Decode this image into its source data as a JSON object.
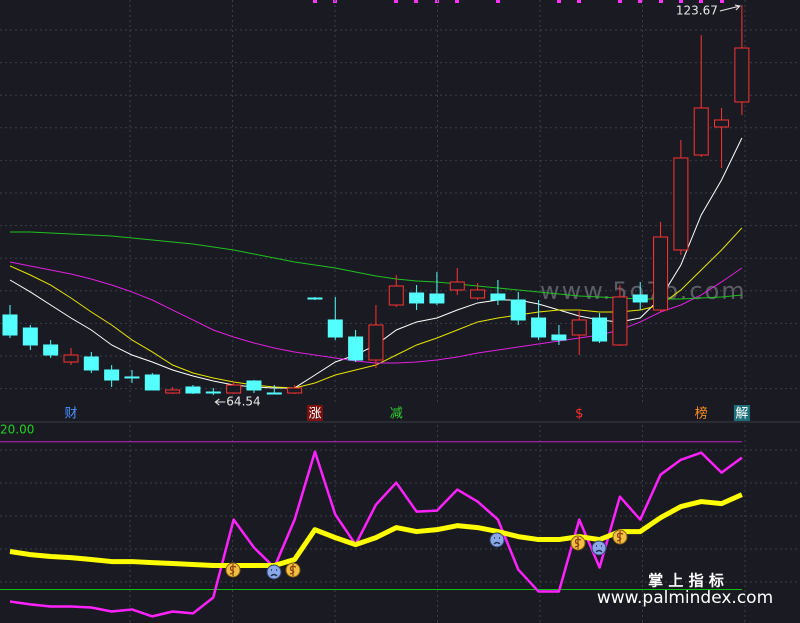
{
  "chart_data": [
    {
      "type": "candlestick",
      "up_color": "#ff3232",
      "down_color": "#54ffff",
      "ylim": [
        63.03,
        124.43
      ],
      "open": [
        76.68,
        74.7,
        72.13,
        69.55,
        70.31,
        68.34,
        67.28,
        67.58,
        64.85,
        65.76,
        65.0,
        64.85,
        66.67,
        64.85,
        64.85,
        79.25,
        75.92,
        73.34,
        69.85,
        78.19,
        80.01,
        79.86,
        80.47,
        79.25,
        79.86,
        78.95,
        76.22,
        73.64,
        73.64,
        76.22,
        72.13,
        79.71,
        77.43,
        86.53,
        100.93,
        105.18,
        108.97
      ],
      "high": [
        78.19,
        75.16,
        72.89,
        71.67,
        71.07,
        69.09,
        68.34,
        67.88,
        65.76,
        66.06,
        65.61,
        66.52,
        66.82,
        66.06,
        66.06,
        79.41,
        79.41,
        74.4,
        78.19,
        82.74,
        81.22,
        83.19,
        83.8,
        81.53,
        81.98,
        80.17,
        78.95,
        75.16,
        77.43,
        76.98,
        81.22,
        81.68,
        90.78,
        103.21,
        119.12,
        108.06,
        123.67
      ],
      "low": [
        73.19,
        71.37,
        70.16,
        69.09,
        67.88,
        65.76,
        66.37,
        65.31,
        64.7,
        64.7,
        64.54,
        64.7,
        64.85,
        64.7,
        64.7,
        78.95,
        72.89,
        69.55,
        68.64,
        77.89,
        77.43,
        78.19,
        79.71,
        78.95,
        78.19,
        75.16,
        72.89,
        72.13,
        70.61,
        72.43,
        71.98,
        77.43,
        77.13,
        85.77,
        100.63,
        98.96,
        107.0
      ],
      "close": [
        73.64,
        72.13,
        70.61,
        70.61,
        68.34,
        66.82,
        67.28,
        65.31,
        65.31,
        64.85,
        64.85,
        66.06,
        65.31,
        64.85,
        65.61,
        79.25,
        73.34,
        69.85,
        75.16,
        81.07,
        78.5,
        78.5,
        81.68,
        80.47,
        78.95,
        75.92,
        73.34,
        72.89,
        75.92,
        72.73,
        79.41,
        78.65,
        88.5,
        100.48,
        108.06,
        106.24,
        117.15
      ],
      "series": [
        {
          "color": "#ffffff",
          "values": [
            81.98,
            80.17,
            78.19,
            76.22,
            74.4,
            72.13,
            70.61,
            69.55,
            68.34,
            67.43,
            66.67,
            66.06,
            65.76,
            65.61,
            65.61,
            67.58,
            69.55,
            70.61,
            72.13,
            74.4,
            75.62,
            76.22,
            77.43,
            78.5,
            78.95,
            78.95,
            78.34,
            77.43,
            76.52,
            75.92,
            75.62,
            76.22,
            79.25,
            84.26,
            91.84,
            97.14,
            103.51
          ]
        },
        {
          "color": "#e6e600",
          "values": [
            84.11,
            82.74,
            81.22,
            79.25,
            77.13,
            75.16,
            72.89,
            71.07,
            69.09,
            67.88,
            67.13,
            66.52,
            66.06,
            65.76,
            65.61,
            66.37,
            67.58,
            68.34,
            69.09,
            70.61,
            72.13,
            73.19,
            74.4,
            75.62,
            76.22,
            76.68,
            77.13,
            77.43,
            77.43,
            77.13,
            77.13,
            77.43,
            78.19,
            80.47,
            83.5,
            86.53,
            89.87
          ]
        },
        {
          "color": "#e020e0",
          "values": [
            84.71,
            84.11,
            83.5,
            82.89,
            82.13,
            81.22,
            80.17,
            78.95,
            77.43,
            75.92,
            74.4,
            73.34,
            72.43,
            71.67,
            71.07,
            70.61,
            70.16,
            69.7,
            69.4,
            69.4,
            69.55,
            69.85,
            70.31,
            70.92,
            71.37,
            71.83,
            72.28,
            72.73,
            73.19,
            73.64,
            74.4,
            75.62,
            77.13,
            78.19,
            79.71,
            81.68,
            83.8
          ]
        },
        {
          "color": "#20c020",
          "values": [
            89.26,
            89.26,
            89.11,
            88.96,
            88.8,
            88.65,
            88.35,
            88.05,
            87.74,
            87.44,
            86.99,
            86.53,
            85.92,
            85.32,
            84.71,
            84.26,
            83.8,
            83.19,
            82.59,
            82.13,
            81.83,
            81.68,
            81.37,
            81.07,
            80.77,
            80.47,
            80.17,
            79.86,
            79.56,
            79.41,
            79.25,
            79.1,
            79.1,
            79.1,
            79.25,
            79.41,
            79.71
          ]
        }
      ],
      "signals": [
        {
          "index": 3,
          "label": "财",
          "color": "#4a90ff"
        },
        {
          "index": 15,
          "label": "涨",
          "color": "#ffffff",
          "bg": "#7a1010"
        },
        {
          "index": 19,
          "label": "减",
          "color": "#30d030"
        },
        {
          "index": 28,
          "label": "$",
          "color": "#ff3030"
        },
        {
          "index": 34,
          "label": "榜",
          "color": "#ff9020"
        },
        {
          "index": 36,
          "label": "解",
          "color": "#ffffff",
          "bg": "#1c6e7a"
        }
      ],
      "watermark": "www.5o7o.com"
    },
    {
      "type": "line",
      "title": "20.00",
      "ylim": [
        -22,
        112
      ],
      "hlines": [
        {
          "value": 100,
          "color": "#c020c0"
        },
        {
          "value": 0,
          "color": "#10c010"
        }
      ],
      "series": [
        {
          "color": "#ff22ff",
          "width": 2.5,
          "values": [
            -8.1,
            -10.1,
            -11.5,
            -11.5,
            -12.2,
            -14.9,
            -13.5,
            -18.2,
            -14.9,
            -16.2,
            -5.4,
            47.3,
            28.4,
            14.9,
            47.3,
            93.2,
            50.7,
            30.4,
            57.4,
            72.3,
            52.7,
            53.4,
            67.6,
            59.5,
            47.3,
            13.5,
            -1.4,
            -1.4,
            47.3,
            14.9,
            62.8,
            47.3,
            77.7,
            87.8,
            92.6,
            79.1,
            89.2
          ]
        },
        {
          "color": "#ffff00",
          "width": 5,
          "values": [
            25.7,
            23.6,
            22.3,
            21.6,
            20.3,
            18.9,
            18.9,
            18.2,
            17.6,
            16.9,
            16.2,
            16.2,
            16.2,
            16.2,
            20.3,
            40.5,
            35.1,
            30.4,
            35.1,
            41.9,
            39.2,
            40.5,
            43.2,
            41.9,
            39.2,
            35.8,
            33.8,
            33.8,
            35.8,
            33.8,
            39.2,
            39.2,
            48.6,
            56.1,
            59.5,
            58.1,
            64.2
          ]
        }
      ],
      "footer": "掌 上 指 标",
      "site": "www.palmindex.com"
    }
  ]
}
